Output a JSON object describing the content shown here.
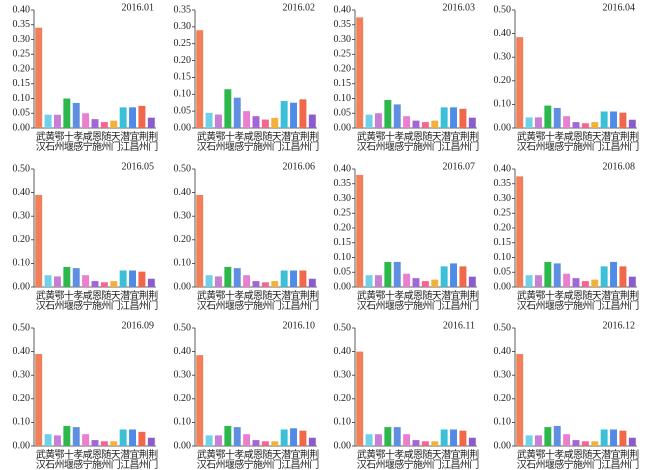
{
  "chart_data": [
    {
      "type": "bar",
      "title": "2016.01",
      "categories": [
        "武汉",
        "黄石",
        "鄂州",
        "十堰",
        "孝感",
        "咸宁",
        "恩施",
        "随州",
        "天门",
        "潜江",
        "宜昌",
        "荆州",
        "荆门"
      ],
      "values": [
        0.34,
        0.045,
        0.045,
        0.1,
        0.085,
        0.05,
        0.03,
        0.02,
        0.025,
        0.07,
        0.07,
        0.075,
        0.035
      ],
      "colors": [
        "#f07f5a",
        "#6fd0e8",
        "#c77fd6",
        "#2db84d",
        "#5f8fe0",
        "#e87fcf",
        "#a366d6",
        "#f2668f",
        "#f2b13d",
        "#3cc0d8",
        "#4e8ce8",
        "#f0674a",
        "#8a5ccc"
      ],
      "ylim": [
        0,
        0.4
      ],
      "yticks": [
        {
          "value": 0,
          "label": "0.00"
        },
        0.05,
        {
          "value": 0.1,
          "label": "0.10"
        },
        0.15,
        {
          "value": 0.2,
          "label": "0.20"
        },
        0.25,
        {
          "value": 0.3,
          "label": "0.30"
        },
        0.35,
        {
          "value": 0.4,
          "label": "0.40"
        }
      ]
    },
    {
      "type": "bar",
      "title": "2016.02",
      "categories": [
        "武汉",
        "黄石",
        "鄂州",
        "十堰",
        "孝感",
        "咸宁",
        "恩施",
        "随州",
        "天门",
        "潜江",
        "宜昌",
        "荆州",
        "荆门"
      ],
      "values": [
        0.29,
        0.045,
        0.04,
        0.115,
        0.09,
        0.05,
        0.035,
        0.025,
        0.03,
        0.08,
        0.075,
        0.085,
        0.04
      ],
      "colors": [
        "#f07f5a",
        "#6fd0e8",
        "#c77fd6",
        "#2db84d",
        "#5f8fe0",
        "#e87fcf",
        "#a366d6",
        "#f2668f",
        "#f2b13d",
        "#3cc0d8",
        "#4e8ce8",
        "#f0674a",
        "#8a5ccc"
      ],
      "ylim": [
        0,
        0.35
      ],
      "yticks": [
        {
          "value": 0,
          "label": "0.00"
        },
        0.05,
        {
          "value": 0.1,
          "label": "0.10"
        },
        0.15,
        {
          "value": 0.2,
          "label": "0.20"
        },
        0.25,
        {
          "value": 0.3,
          "label": "0.30"
        },
        0.35
      ]
    },
    {
      "type": "bar",
      "title": "2016.03",
      "categories": [
        "武汉",
        "黄石",
        "鄂州",
        "十堰",
        "孝感",
        "咸宁",
        "恩施",
        "随州",
        "天门",
        "潜江",
        "宜昌",
        "荆州",
        "荆门"
      ],
      "values": [
        0.375,
        0.045,
        0.05,
        0.095,
        0.08,
        0.04,
        0.025,
        0.02,
        0.025,
        0.07,
        0.07,
        0.065,
        0.035
      ],
      "colors": [
        "#f07f5a",
        "#6fd0e8",
        "#c77fd6",
        "#2db84d",
        "#5f8fe0",
        "#e87fcf",
        "#a366d6",
        "#f2668f",
        "#f2b13d",
        "#3cc0d8",
        "#4e8ce8",
        "#f0674a",
        "#8a5ccc"
      ],
      "ylim": [
        0,
        0.4
      ],
      "yticks": [
        {
          "value": 0,
          "label": "0.00"
        },
        0.05,
        {
          "value": 0.1,
          "label": "0.10"
        },
        0.15,
        {
          "value": 0.2,
          "label": "0.20"
        },
        0.25,
        {
          "value": 0.3,
          "label": "0.30"
        },
        0.35,
        {
          "value": 0.4,
          "label": "0.40"
        }
      ]
    },
    {
      "type": "bar",
      "title": "2016.04",
      "categories": [
        "武汉",
        "黄石",
        "鄂州",
        "十堰",
        "孝感",
        "咸宁",
        "恩施",
        "随州",
        "天门",
        "潜江",
        "宜昌",
        "荆州",
        "荆门"
      ],
      "values": [
        0.385,
        0.045,
        0.045,
        0.095,
        0.085,
        0.05,
        0.025,
        0.02,
        0.025,
        0.07,
        0.07,
        0.065,
        0.035
      ],
      "colors": [
        "#f07f5a",
        "#6fd0e8",
        "#c77fd6",
        "#2db84d",
        "#5f8fe0",
        "#e87fcf",
        "#a366d6",
        "#f2668f",
        "#f2b13d",
        "#3cc0d8",
        "#4e8ce8",
        "#f0674a",
        "#8a5ccc"
      ],
      "ylim": [
        0,
        0.5
      ],
      "yticks": [
        {
          "value": 0,
          "label": "0.00"
        },
        {
          "value": 0.1,
          "label": "0.10"
        },
        {
          "value": 0.2,
          "label": "0.20"
        },
        {
          "value": 0.3,
          "label": "0.30"
        },
        {
          "value": 0.4,
          "label": "0.40"
        },
        {
          "value": 0.5,
          "label": "0.50"
        }
      ]
    },
    {
      "type": "bar",
      "title": "2016.05",
      "categories": [
        "武汉",
        "黄石",
        "鄂州",
        "十堰",
        "孝感",
        "咸宁",
        "恩施",
        "随州",
        "天门",
        "潜江",
        "宜昌",
        "荆州",
        "荆门"
      ],
      "values": [
        0.39,
        0.05,
        0.045,
        0.085,
        0.08,
        0.05,
        0.025,
        0.02,
        0.025,
        0.07,
        0.07,
        0.065,
        0.035
      ],
      "colors": [
        "#f07f5a",
        "#6fd0e8",
        "#c77fd6",
        "#2db84d",
        "#5f8fe0",
        "#e87fcf",
        "#a366d6",
        "#f2668f",
        "#f2b13d",
        "#3cc0d8",
        "#4e8ce8",
        "#f0674a",
        "#8a5ccc"
      ],
      "ylim": [
        0,
        0.5
      ],
      "yticks": [
        {
          "value": 0,
          "label": "0.00"
        },
        {
          "value": 0.1,
          "label": "0.10"
        },
        {
          "value": 0.2,
          "label": "0.20"
        },
        {
          "value": 0.3,
          "label": "0.30"
        },
        {
          "value": 0.4,
          "label": "0.40"
        },
        {
          "value": 0.5,
          "label": "0.50"
        }
      ]
    },
    {
      "type": "bar",
      "title": "2016.06",
      "categories": [
        "武汉",
        "黄石",
        "鄂州",
        "十堰",
        "孝感",
        "咸宁",
        "恩施",
        "随州",
        "天门",
        "潜江",
        "宜昌",
        "荆州",
        "荆门"
      ],
      "values": [
        0.39,
        0.05,
        0.045,
        0.085,
        0.08,
        0.05,
        0.025,
        0.02,
        0.025,
        0.07,
        0.07,
        0.07,
        0.035
      ],
      "colors": [
        "#f07f5a",
        "#6fd0e8",
        "#c77fd6",
        "#2db84d",
        "#5f8fe0",
        "#e87fcf",
        "#a366d6",
        "#f2668f",
        "#f2b13d",
        "#3cc0d8",
        "#4e8ce8",
        "#f0674a",
        "#8a5ccc"
      ],
      "ylim": [
        0,
        0.5
      ],
      "yticks": [
        {
          "value": 0,
          "label": "0.00"
        },
        {
          "value": 0.1,
          "label": "0.10"
        },
        {
          "value": 0.2,
          "label": "0.20"
        },
        {
          "value": 0.3,
          "label": "0.30"
        },
        {
          "value": 0.4,
          "label": "0.40"
        },
        {
          "value": 0.5,
          "label": "0.50"
        }
      ]
    },
    {
      "type": "bar",
      "title": "2016.07",
      "categories": [
        "武汉",
        "黄石",
        "鄂州",
        "十堰",
        "孝感",
        "咸宁",
        "恩施",
        "随州",
        "天门",
        "潜江",
        "宜昌",
        "荆州",
        "荆门"
      ],
      "values": [
        0.38,
        0.04,
        0.04,
        0.085,
        0.085,
        0.045,
        0.03,
        0.02,
        0.025,
        0.07,
        0.08,
        0.07,
        0.035
      ],
      "colors": [
        "#f07f5a",
        "#6fd0e8",
        "#c77fd6",
        "#2db84d",
        "#5f8fe0",
        "#e87fcf",
        "#a366d6",
        "#f2668f",
        "#f2b13d",
        "#3cc0d8",
        "#4e8ce8",
        "#f0674a",
        "#8a5ccc"
      ],
      "ylim": [
        0,
        0.4
      ],
      "yticks": [
        {
          "value": 0,
          "label": "0.00"
        },
        0.05,
        {
          "value": 0.1,
          "label": "0.10"
        },
        0.15,
        {
          "value": 0.2,
          "label": "0.20"
        },
        0.25,
        {
          "value": 0.3,
          "label": "0.30"
        },
        0.35,
        {
          "value": 0.4,
          "label": "0.40"
        }
      ]
    },
    {
      "type": "bar",
      "title": "2016.08",
      "categories": [
        "武汉",
        "黄石",
        "鄂州",
        "十堰",
        "孝感",
        "咸宁",
        "恩施",
        "随州",
        "天门",
        "潜江",
        "宜昌",
        "荆州",
        "荆门"
      ],
      "values": [
        0.375,
        0.04,
        0.04,
        0.085,
        0.08,
        0.045,
        0.03,
        0.02,
        0.025,
        0.07,
        0.085,
        0.07,
        0.035
      ],
      "colors": [
        "#f07f5a",
        "#6fd0e8",
        "#c77fd6",
        "#2db84d",
        "#5f8fe0",
        "#e87fcf",
        "#a366d6",
        "#f2668f",
        "#f2b13d",
        "#3cc0d8",
        "#4e8ce8",
        "#f0674a",
        "#8a5ccc"
      ],
      "ylim": [
        0,
        0.4
      ],
      "yticks": [
        {
          "value": 0,
          "label": "0.00"
        },
        0.05,
        {
          "value": 0.1,
          "label": "0.10"
        },
        0.15,
        {
          "value": 0.2,
          "label": "0.20"
        },
        0.25,
        {
          "value": 0.3,
          "label": "0.30"
        },
        0.35,
        {
          "value": 0.4,
          "label": "0.40"
        }
      ]
    },
    {
      "type": "bar",
      "title": "2016.09",
      "categories": [
        "武汉",
        "黄石",
        "鄂州",
        "十堰",
        "孝感",
        "咸宁",
        "恩施",
        "随州",
        "天门",
        "潜江",
        "宜昌",
        "荆州",
        "荆门"
      ],
      "values": [
        0.39,
        0.05,
        0.045,
        0.085,
        0.08,
        0.05,
        0.025,
        0.02,
        0.02,
        0.07,
        0.07,
        0.06,
        0.035
      ],
      "colors": [
        "#f07f5a",
        "#6fd0e8",
        "#c77fd6",
        "#2db84d",
        "#5f8fe0",
        "#e87fcf",
        "#a366d6",
        "#f2668f",
        "#f2b13d",
        "#3cc0d8",
        "#4e8ce8",
        "#f0674a",
        "#8a5ccc"
      ],
      "ylim": [
        0,
        0.5
      ],
      "yticks": [
        {
          "value": 0,
          "label": "0.00"
        },
        {
          "value": 0.1,
          "label": "0.10"
        },
        {
          "value": 0.2,
          "label": "0.20"
        },
        {
          "value": 0.3,
          "label": "0.30"
        },
        {
          "value": 0.4,
          "label": "0.40"
        },
        {
          "value": 0.5,
          "label": "0.50"
        }
      ]
    },
    {
      "type": "bar",
      "title": "2016.10",
      "categories": [
        "武汉",
        "黄石",
        "鄂州",
        "十堰",
        "孝感",
        "咸宁",
        "恩施",
        "随州",
        "天门",
        "潜江",
        "宜昌",
        "荆州",
        "荆门"
      ],
      "values": [
        0.385,
        0.045,
        0.045,
        0.085,
        0.08,
        0.05,
        0.025,
        0.02,
        0.02,
        0.07,
        0.075,
        0.065,
        0.035
      ],
      "colors": [
        "#f07f5a",
        "#6fd0e8",
        "#c77fd6",
        "#2db84d",
        "#5f8fe0",
        "#e87fcf",
        "#a366d6",
        "#f2668f",
        "#f2b13d",
        "#3cc0d8",
        "#4e8ce8",
        "#f0674a",
        "#8a5ccc"
      ],
      "ylim": [
        0,
        0.5
      ],
      "yticks": [
        {
          "value": 0,
          "label": "0.00"
        },
        {
          "value": 0.1,
          "label": "0.10"
        },
        {
          "value": 0.2,
          "label": "0.20"
        },
        {
          "value": 0.3,
          "label": "0.30"
        },
        {
          "value": 0.4,
          "label": "0.40"
        },
        {
          "value": 0.5,
          "label": "0.50"
        }
      ]
    },
    {
      "type": "bar",
      "title": "2016.11",
      "categories": [
        "武汉",
        "黄石",
        "鄂州",
        "十堰",
        "孝感",
        "咸宁",
        "恩施",
        "随州",
        "天门",
        "潜江",
        "宜昌",
        "荆州",
        "荆门"
      ],
      "values": [
        0.4,
        0.05,
        0.05,
        0.08,
        0.08,
        0.05,
        0.025,
        0.02,
        0.02,
        0.07,
        0.07,
        0.065,
        0.035
      ],
      "colors": [
        "#f07f5a",
        "#6fd0e8",
        "#c77fd6",
        "#2db84d",
        "#5f8fe0",
        "#e87fcf",
        "#a366d6",
        "#f2668f",
        "#f2b13d",
        "#3cc0d8",
        "#4e8ce8",
        "#f0674a",
        "#8a5ccc"
      ],
      "ylim": [
        0,
        0.5
      ],
      "yticks": [
        {
          "value": 0,
          "label": "0.00"
        },
        {
          "value": 0.1,
          "label": "0.10"
        },
        {
          "value": 0.2,
          "label": "0.20"
        },
        {
          "value": 0.3,
          "label": "0.30"
        },
        {
          "value": 0.4,
          "label": "0.40"
        },
        {
          "value": 0.5,
          "label": "0.50"
        }
      ]
    },
    {
      "type": "bar",
      "title": "2016.12",
      "categories": [
        "武汉",
        "黄石",
        "鄂州",
        "十堰",
        "孝感",
        "咸宁",
        "恩施",
        "随州",
        "天门",
        "潜江",
        "宜昌",
        "荆州",
        "荆门"
      ],
      "values": [
        0.39,
        0.045,
        0.045,
        0.08,
        0.085,
        0.05,
        0.025,
        0.02,
        0.02,
        0.07,
        0.07,
        0.065,
        0.035
      ],
      "colors": [
        "#f07f5a",
        "#6fd0e8",
        "#c77fd6",
        "#2db84d",
        "#5f8fe0",
        "#e87fcf",
        "#a366d6",
        "#f2668f",
        "#f2b13d",
        "#3cc0d8",
        "#4e8ce8",
        "#f0674a",
        "#8a5ccc"
      ],
      "ylim": [
        0,
        0.5
      ],
      "yticks": [
        {
          "value": 0,
          "label": "0.00"
        },
        {
          "value": 0.1,
          "label": "0.10"
        },
        {
          "value": 0.2,
          "label": "0.20"
        },
        {
          "value": 0.3,
          "label": "0.30"
        },
        {
          "value": 0.4,
          "label": "0.40"
        },
        {
          "value": 0.5,
          "label": "0.50"
        }
      ]
    }
  ]
}
